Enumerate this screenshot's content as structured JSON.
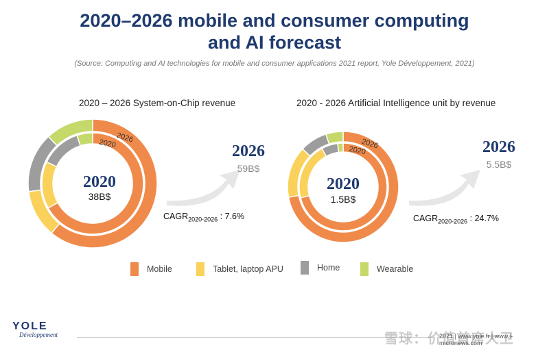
{
  "title_line1": "2020–2026 mobile and consumer computing",
  "title_line2": "and AI forecast",
  "source": "(Source: Computing and AI technologies for mobile and consumer applications 2021 report, Yole Développement, 2021)",
  "colors": {
    "mobile": "#f08a4b",
    "tablet": "#fad15b",
    "home": "#9d9d9d",
    "wearable": "#c5d96a",
    "navy": "#1f3a6e",
    "arrow": "#e6e6e6"
  },
  "chart_data": [
    {
      "type": "pie",
      "subtype": "nested-donut",
      "title": "2020 – 2026 System-on-Chip revenue",
      "categories": [
        "Mobile",
        "Tablet, laptop APU",
        "Home",
        "Wearable"
      ],
      "series": [
        {
          "name": "2026",
          "values": [
            61,
            12,
            15,
            12
          ]
        },
        {
          "name": "2020",
          "values": [
            67,
            15,
            13,
            5
          ]
        }
      ],
      "ring_labels": {
        "outer": "2026",
        "inner": "2020"
      },
      "center_year": "2020",
      "center_value": "38B$",
      "forecast_year": "2026",
      "forecast_value": "59B$",
      "cagr_label": "CAGR",
      "cagr_sub": "2020-2026",
      "cagr_value": " : 7.6%"
    },
    {
      "type": "pie",
      "subtype": "nested-donut",
      "title": "2020 - 2026 Artificial Intelligence unit by revenue",
      "categories": [
        "Mobile",
        "Tablet, laptop APU",
        "Home",
        "Wearable"
      ],
      "series": [
        {
          "name": "2026",
          "values": [
            72,
            15,
            8,
            5
          ]
        },
        {
          "name": "2020",
          "values": [
            71,
            21,
            6,
            2
          ]
        }
      ],
      "ring_labels": {
        "outer": "2026",
        "inner": "2020"
      },
      "center_year": "2020",
      "center_value": "1.5B$",
      "forecast_year": "2026",
      "forecast_value": "5.5B$",
      "cagr_label": "CAGR",
      "cagr_sub": "2020-2026",
      "cagr_value": " : 24.7%"
    }
  ],
  "legend": [
    {
      "label": "Mobile",
      "color_key": "mobile"
    },
    {
      "label": "Tablet, laptop APU",
      "color_key": "tablet"
    },
    {
      "label": "Home",
      "color_key": "home"
    },
    {
      "label": "Wearable",
      "color_key": "wearable"
    }
  ],
  "footer": {
    "logo_name": "YOLE",
    "logo_sub": "Développement",
    "right_text": "2021 | www.yole.fr | www.i-micronews.com",
    "watermark": "雪球：价值首席大卫"
  }
}
